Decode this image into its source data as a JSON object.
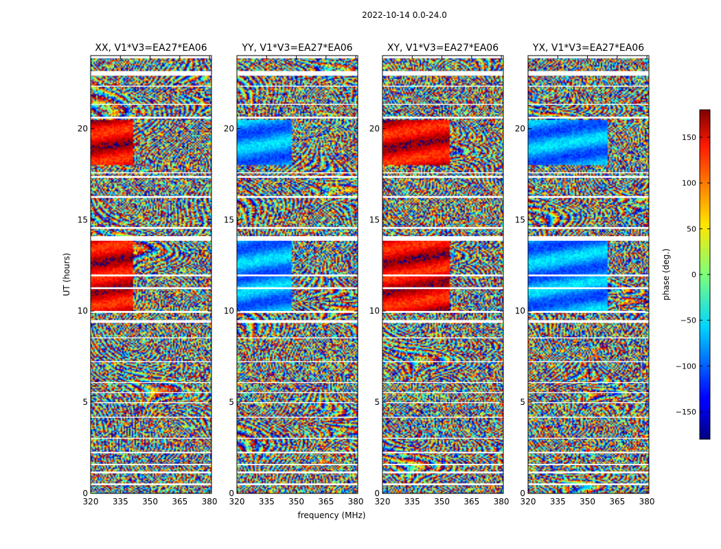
{
  "figure": {
    "suptitle": "2022-10-14 0.0-24.0"
  },
  "chart_data": {
    "type": "heatmap",
    "xlabel": "frequency (MHz)",
    "ylabel": "UT (hours)",
    "xlim": [
      320,
      381
    ],
    "ylim": [
      0,
      24
    ],
    "xticks": [
      320,
      335,
      350,
      365,
      380
    ],
    "yticks": [
      0,
      5,
      10,
      15,
      20
    ],
    "colormap": "jet",
    "panels": [
      {
        "title": "XX, V1*V3=EA27*EA06",
        "id": "xx"
      },
      {
        "title": "YY, V1*V3=EA27*EA06",
        "id": "yy"
      },
      {
        "title": "XY, V1*V3=EA27*EA06",
        "id": "xy"
      },
      {
        "title": "YX, V1*V3=EA27*EA06",
        "id": "yx"
      }
    ],
    "colorbar": {
      "label": "phase (deg.)",
      "range": [
        -180,
        180
      ],
      "ticks": [
        -150,
        -100,
        -50,
        0,
        50,
        100,
        150
      ]
    },
    "flagged_bands_hours": [
      [
        0.45,
        0.55
      ],
      [
        1.1,
        1.2
      ],
      [
        1.55,
        1.62
      ],
      [
        2.2,
        2.28
      ],
      [
        3.0,
        3.05
      ],
      [
        4.15,
        4.2
      ],
      [
        4.95,
        5.0
      ],
      [
        5.5,
        5.55
      ],
      [
        6.05,
        6.1
      ],
      [
        7.2,
        7.25
      ],
      [
        8.5,
        8.55
      ],
      [
        9.35,
        9.5
      ],
      [
        9.9,
        10.0
      ],
      [
        11.2,
        11.3
      ],
      [
        11.9,
        12.0
      ],
      [
        13.85,
        14.1
      ],
      [
        14.5,
        14.6
      ],
      [
        16.2,
        16.3
      ],
      [
        17.3,
        17.4
      ],
      [
        17.55,
        17.6
      ],
      [
        20.55,
        20.65
      ],
      [
        21.3,
        21.35
      ],
      [
        22.3,
        22.35
      ],
      [
        22.9,
        23.15
      ],
      [
        23.85,
        24.0
      ]
    ]
  }
}
